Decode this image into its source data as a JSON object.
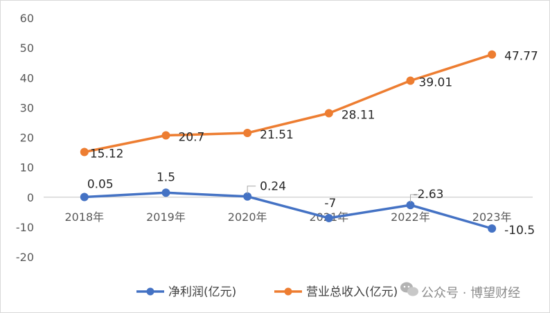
{
  "chart_data": {
    "type": "line",
    "title": "",
    "xlabel": "",
    "ylabel": "",
    "categories": [
      "2018年",
      "2019年",
      "2020年",
      "2021年",
      "2022年",
      "2023年"
    ],
    "ylim": [
      -20,
      60
    ],
    "yticks": [
      "60",
      "50",
      "40",
      "30",
      "20",
      "10",
      "0",
      "-10",
      "-20"
    ],
    "ytick_values": [
      60,
      50,
      40,
      30,
      20,
      10,
      0,
      -10,
      -20
    ],
    "grid": false,
    "legend": "bottom",
    "series": [
      {
        "name": "净利润(亿元)",
        "color": "#4472c4",
        "values": [
          0.05,
          1.5,
          0.24,
          -7,
          -2.63,
          -10.5
        ],
        "labels": [
          "0.05",
          "1.5",
          "0.24",
          "-7",
          "-2.63",
          "-10.5"
        ]
      },
      {
        "name": "营业总收入(亿元)",
        "color": "#ed7d31",
        "values": [
          15.12,
          20.7,
          21.51,
          28.11,
          39.01,
          47.77
        ],
        "labels": [
          "15.12",
          "20.7",
          "21.51",
          "28.11",
          "39.01",
          "47.77"
        ]
      }
    ]
  },
  "watermark": {
    "icon": "wechat-icon",
    "text": "公众号 · 博望财经"
  }
}
